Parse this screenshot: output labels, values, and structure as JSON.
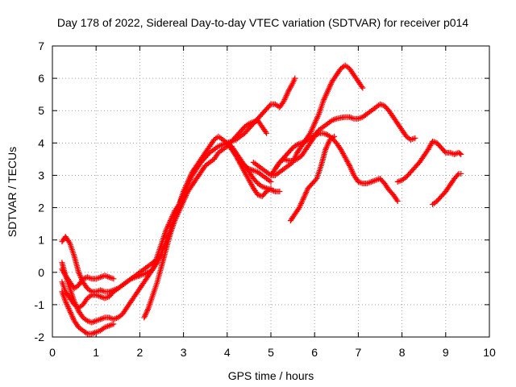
{
  "chart_data": {
    "type": "scatter",
    "title": "Day 178 of 2022, Sidereal Day-to-day VTEC variation (SDTVAR) for receiver p014",
    "xlabel": "GPS time / hours",
    "ylabel": "SDTVAR / TECUs",
    "xlim": [
      0,
      10
    ],
    "ylim": [
      -2,
      7
    ],
    "xticks": [
      "0",
      "1",
      "2",
      "3",
      "4",
      "5",
      "6",
      "7",
      "8",
      "9",
      "10"
    ],
    "yticks": [
      "-2",
      "-1",
      "0",
      "1",
      "2",
      "3",
      "4",
      "5",
      "6",
      "7"
    ],
    "grid": true,
    "legend": "none",
    "marker": "+",
    "color": "#ff0000",
    "series": [
      {
        "x": [
          0.22,
          0.3,
          0.4,
          0.5,
          0.6,
          0.7,
          0.8,
          0.9,
          1.0,
          1.1,
          1.2,
          1.3,
          1.4
        ],
        "y": [
          -0.6,
          -0.9,
          -1.2,
          -1.5,
          -1.7,
          -1.8,
          -1.9,
          -1.9,
          -1.85,
          -1.8,
          -1.7,
          -1.65,
          -1.6
        ]
      },
      {
        "x": [
          0.22,
          0.3,
          0.4,
          0.5,
          0.6,
          0.7,
          0.8,
          0.9,
          1.0,
          1.1,
          1.2,
          1.3,
          1.4
        ],
        "y": [
          0.3,
          -0.1,
          -0.5,
          -0.9,
          -1.2,
          -1.4,
          -1.5,
          -1.55,
          -1.5,
          -1.45,
          -1.4,
          -1.4,
          -1.45
        ]
      },
      {
        "x": [
          0.22,
          0.3,
          0.4,
          0.5,
          0.6,
          0.7,
          0.8,
          0.9,
          1.0,
          1.1,
          1.2,
          1.3,
          1.4,
          1.5,
          1.6,
          1.7,
          1.8,
          1.9,
          2.0,
          2.1,
          2.2,
          2.3,
          2.4
        ],
        "y": [
          0.95,
          1.1,
          0.9,
          0.5,
          0.0,
          -0.3,
          -0.5,
          -0.6,
          -0.6,
          -0.55,
          -0.6,
          -0.6,
          -0.55,
          -0.5,
          -0.4,
          -0.3,
          -0.2,
          -0.1,
          0.0,
          0.1,
          0.2,
          0.3,
          0.4
        ]
      },
      {
        "x": [
          0.22,
          0.3,
          0.4,
          0.5,
          0.6,
          0.7,
          0.8,
          0.9,
          1.0,
          1.1,
          1.2,
          1.3,
          1.4
        ],
        "y": [
          -0.3,
          -0.6,
          -0.8,
          -1.0,
          -1.1,
          -1.0,
          -0.8,
          -0.7,
          -0.7,
          -0.75,
          -0.8,
          -0.75,
          -0.6
        ]
      },
      {
        "x": [
          0.22,
          0.3,
          0.4,
          0.5,
          0.6,
          0.7,
          0.8,
          0.9,
          1.0,
          1.1,
          1.2,
          1.3,
          1.4
        ],
        "y": [
          0.1,
          -0.1,
          -0.3,
          -0.5,
          -0.4,
          -0.2,
          -0.15,
          -0.2,
          -0.2,
          -0.15,
          -0.1,
          -0.15,
          -0.2
        ]
      },
      {
        "x": [
          1.4,
          1.5,
          1.6,
          1.7,
          1.8,
          1.9,
          2.0,
          2.1,
          2.2,
          2.3,
          2.4,
          2.5,
          2.6,
          2.7,
          2.8,
          2.9,
          3.0,
          3.1,
          3.2,
          3.3,
          3.4,
          3.5,
          3.6,
          3.7,
          3.8,
          3.9,
          4.0
        ],
        "y": [
          -1.45,
          -1.4,
          -1.3,
          -1.1,
          -0.9,
          -0.7,
          -0.5,
          -0.3,
          -0.1,
          0.1,
          0.5,
          0.9,
          1.3,
          1.6,
          1.9,
          2.1,
          2.4,
          2.7,
          3.0,
          3.2,
          3.4,
          3.55,
          3.7,
          3.8,
          3.9,
          3.95,
          4.0
        ]
      },
      {
        "x": [
          1.4,
          1.5,
          1.6,
          1.7,
          1.8,
          1.9,
          2.0,
          2.1,
          2.2,
          2.3,
          2.4,
          2.5,
          2.6,
          2.7,
          2.8,
          2.9,
          3.0,
          3.1,
          3.2,
          3.3,
          3.4,
          3.5,
          3.6,
          3.7,
          3.8,
          3.9,
          4.0
        ],
        "y": [
          -0.6,
          -0.5,
          -0.4,
          -0.3,
          -0.2,
          -0.15,
          -0.1,
          -0.05,
          0.0,
          0.1,
          0.3,
          0.6,
          0.95,
          1.3,
          1.7,
          2.1,
          2.5,
          2.8,
          3.1,
          3.3,
          3.5,
          3.7,
          3.9,
          4.1,
          4.2,
          4.1,
          4.0
        ]
      },
      {
        "x": [
          2.1,
          2.2,
          2.3,
          2.4,
          2.5,
          2.6,
          2.7,
          2.8,
          2.9,
          3.0,
          3.1,
          3.2,
          3.3,
          3.4,
          3.5,
          3.6,
          3.7,
          3.8,
          3.9,
          4.0
        ],
        "y": [
          -1.4,
          -1.1,
          -0.7,
          -0.3,
          0.2,
          0.7,
          1.2,
          1.6,
          1.9,
          2.2,
          2.5,
          2.7,
          2.9,
          3.1,
          3.3,
          3.4,
          3.5,
          3.7,
          3.8,
          3.9
        ]
      },
      {
        "x": [
          4.0,
          4.1,
          4.2,
          4.3,
          4.4,
          4.5,
          4.6,
          4.7,
          4.8,
          4.9,
          5.0,
          5.1,
          5.2,
          5.3,
          5.4,
          5.5,
          5.55
        ],
        "y": [
          4.0,
          4.05,
          4.1,
          4.2,
          4.3,
          4.45,
          4.6,
          4.75,
          4.9,
          5.05,
          5.2,
          5.2,
          5.1,
          5.3,
          5.6,
          5.85,
          6.0
        ]
      },
      {
        "x": [
          4.0,
          4.1,
          4.2,
          4.3,
          4.4,
          4.5,
          4.6,
          4.7,
          4.8,
          4.9,
          5.0
        ],
        "y": [
          4.0,
          3.9,
          3.7,
          3.5,
          3.3,
          3.2,
          3.15,
          3.1,
          3.0,
          2.9,
          2.8
        ]
      },
      {
        "x": [
          4.0,
          4.1,
          4.2,
          4.3,
          4.4,
          4.5,
          4.6,
          4.7,
          4.8,
          4.9,
          5.0,
          5.1,
          5.2
        ],
        "y": [
          4.0,
          3.85,
          3.65,
          3.45,
          3.3,
          3.1,
          2.9,
          2.75,
          2.65,
          2.6,
          2.55,
          2.5,
          2.5
        ]
      },
      {
        "x": [
          4.0,
          4.1,
          4.2,
          4.3,
          4.4,
          4.5,
          4.6,
          4.7,
          4.8,
          4.9,
          5.0
        ],
        "y": [
          4.0,
          3.8,
          3.6,
          3.35,
          3.1,
          2.85,
          2.6,
          2.4,
          2.35,
          2.5,
          2.6
        ]
      },
      {
        "x": [
          4.0,
          4.1,
          4.2,
          4.3,
          4.4,
          4.5,
          4.6,
          4.7,
          4.8,
          4.9
        ],
        "y": [
          3.95,
          4.05,
          4.2,
          4.35,
          4.5,
          4.6,
          4.65,
          4.7,
          4.5,
          4.3
        ]
      },
      {
        "x": [
          4.6,
          4.7,
          4.8,
          4.9,
          5.0,
          5.1,
          5.2,
          5.3,
          5.4,
          5.5,
          5.6,
          5.7,
          5.8,
          5.9,
          6.0,
          6.1,
          6.2,
          6.3,
          6.4,
          6.5,
          6.6,
          6.7,
          6.8,
          6.9,
          7.0,
          7.1
        ],
        "y": [
          3.4,
          3.3,
          3.2,
          3.1,
          3.0,
          3.0,
          3.1,
          3.2,
          3.3,
          3.4,
          3.7,
          3.9,
          4.1,
          4.3,
          4.6,
          4.9,
          5.3,
          5.6,
          5.9,
          6.1,
          6.3,
          6.4,
          6.3,
          6.1,
          5.9,
          5.7
        ]
      },
      {
        "x": [
          5.0,
          5.1,
          5.2,
          5.3,
          5.4,
          5.5,
          5.6,
          5.7,
          5.8,
          5.9,
          6.0,
          6.1,
          6.2,
          6.3,
          6.4,
          6.5,
          6.6,
          6.7,
          6.8,
          6.9,
          7.0,
          7.1,
          7.2,
          7.3,
          7.4,
          7.5,
          7.6,
          7.7,
          7.8,
          7.9,
          8.0,
          8.1,
          8.2,
          8.3
        ],
        "y": [
          3.0,
          3.2,
          3.4,
          3.55,
          3.7,
          3.85,
          3.95,
          4.0,
          4.05,
          4.15,
          4.25,
          4.4,
          4.5,
          4.6,
          4.7,
          4.75,
          4.78,
          4.8,
          4.8,
          4.75,
          4.75,
          4.8,
          4.9,
          5.0,
          5.1,
          5.2,
          5.15,
          5.0,
          4.8,
          4.6,
          4.4,
          4.2,
          4.1,
          4.15
        ]
      },
      {
        "x": [
          5.1,
          5.2,
          5.3,
          5.4,
          5.5,
          5.6,
          5.7,
          5.8,
          5.9,
          6.0,
          6.1,
          6.2,
          6.3,
          6.4,
          6.5,
          6.6,
          6.7,
          6.8,
          6.9,
          7.0,
          7.1,
          7.2,
          7.3,
          7.4,
          7.5,
          7.6,
          7.7,
          7.8,
          7.9
        ],
        "y": [
          3.2,
          3.4,
          3.5,
          3.45,
          3.45,
          3.5,
          3.6,
          3.8,
          4.0,
          4.2,
          4.3,
          4.3,
          4.25,
          4.15,
          4.0,
          3.8,
          3.55,
          3.3,
          3.0,
          2.8,
          2.75,
          2.75,
          2.8,
          2.85,
          2.9,
          2.75,
          2.55,
          2.4,
          2.2
        ]
      },
      {
        "x": [
          5.45,
          5.55,
          5.65,
          5.75,
          5.85,
          5.95,
          6.05,
          6.15,
          6.25,
          6.35,
          6.45
        ],
        "y": [
          1.6,
          1.8,
          2.0,
          2.3,
          2.6,
          2.75,
          2.9,
          3.3,
          3.8,
          4.1,
          4.2
        ]
      },
      {
        "x": [
          7.9,
          8.0,
          8.1,
          8.2,
          8.3,
          8.4,
          8.5,
          8.6,
          8.7,
          8.8,
          8.9,
          9.0,
          9.1,
          9.2,
          9.3,
          9.35
        ],
        "y": [
          2.8,
          2.85,
          2.95,
          3.1,
          3.25,
          3.4,
          3.6,
          3.8,
          4.05,
          4.0,
          3.85,
          3.7,
          3.7,
          3.65,
          3.7,
          3.65
        ]
      },
      {
        "x": [
          8.7,
          8.8,
          8.9,
          9.0,
          9.1,
          9.2,
          9.3,
          9.35
        ],
        "y": [
          2.1,
          2.2,
          2.35,
          2.5,
          2.7,
          2.9,
          3.05,
          3.05
        ]
      }
    ]
  }
}
